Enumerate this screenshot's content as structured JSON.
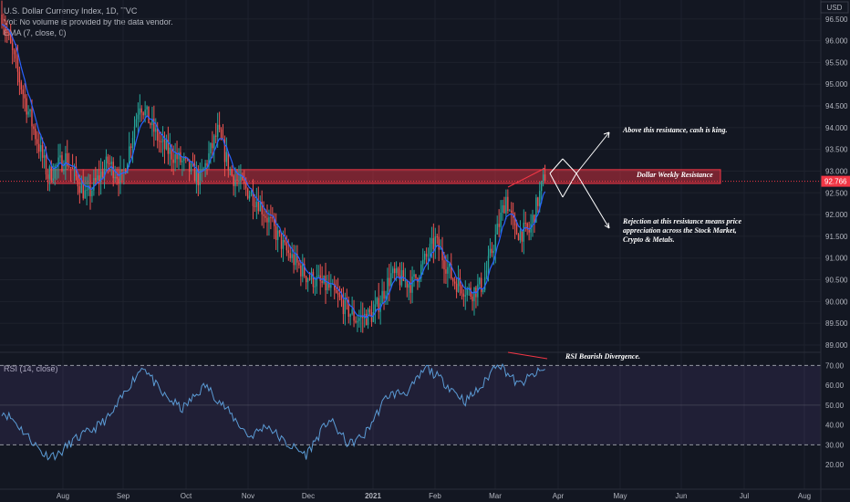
{
  "legend": {
    "title": "U.S. Dollar Currency Index, 1D, TVC",
    "volume_note": "Vol: No volume is provided by the data vendor.",
    "ema": "EMA (7, close, 0)",
    "rsi": "RSI (14, close)"
  },
  "currency_label": "USD",
  "price_tag": "92.766",
  "price_axis": [
    "96.500",
    "96.000",
    "95.500",
    "95.000",
    "94.500",
    "94.000",
    "93.500",
    "93.000",
    "92.500",
    "92.000",
    "91.500",
    "91.000",
    "90.500",
    "90.000",
    "89.500",
    "89.000"
  ],
  "rsi_axis": [
    "70.00",
    "60.00",
    "50.00",
    "40.00",
    "30.00",
    "20.00"
  ],
  "time_axis": [
    "Aug",
    "Sep",
    "Oct",
    "Nov",
    "Dec",
    "2021",
    "Feb",
    "Mar",
    "Apr",
    "May",
    "Jun",
    "Jul",
    "Aug"
  ],
  "annotations": {
    "resistance_label": "Dollar Weekly Resistance",
    "above_note": "Above this resistance, cash is king.",
    "rejection_note": [
      "Rejection at this resistance means price",
      "appreciation across the Stock Market,",
      "Crypto & Metals."
    ],
    "rsi_note": "RSI Bearish Divergence."
  },
  "colors": {
    "background": "#131722",
    "up": "#26a69a",
    "down": "#ef5350",
    "ema": "#2962ff",
    "rsi_line": "#5b9bd5",
    "rsi_band": "#7e57c2",
    "resistance": "#f23645"
  },
  "chart_data": {
    "type": "candlestick",
    "symbol": "U.S. Dollar Currency Index",
    "interval": "1D",
    "price_ylim": [
      89.0,
      96.6
    ],
    "rsi_ylim": [
      15,
      72
    ],
    "resistance_zone": [
      92.8,
      92.95
    ],
    "last_price": 92.766,
    "anchors": [
      [
        0,
        96.6
      ],
      [
        14,
        94.5
      ],
      [
        26,
        92.9
      ],
      [
        36,
        93.3
      ],
      [
        48,
        92.4
      ],
      [
        60,
        93.2
      ],
      [
        68,
        92.8
      ],
      [
        78,
        94.6
      ],
      [
        90,
        93.6
      ],
      [
        102,
        93.2
      ],
      [
        112,
        92.8
      ],
      [
        122,
        93.9
      ],
      [
        130,
        92.9
      ],
      [
        145,
        92.3
      ],
      [
        160,
        91.2
      ],
      [
        172,
        90.6
      ],
      [
        185,
        90.3
      ],
      [
        200,
        89.6
      ],
      [
        210,
        89.7
      ],
      [
        220,
        90.6
      ],
      [
        232,
        90.4
      ],
      [
        245,
        91.4
      ],
      [
        255,
        90.5
      ],
      [
        265,
        90.2
      ],
      [
        272,
        90.4
      ],
      [
        285,
        92.4
      ],
      [
        290,
        91.6
      ],
      [
        298,
        91.6
      ],
      [
        307,
        92.9
      ]
    ],
    "rsi_anchors": [
      [
        0,
        47
      ],
      [
        6,
        43
      ],
      [
        12,
        37
      ],
      [
        16,
        33
      ],
      [
        24,
        25
      ],
      [
        32,
        25
      ],
      [
        40,
        32
      ],
      [
        52,
        38
      ],
      [
        62,
        45
      ],
      [
        72,
        60
      ],
      [
        80,
        70
      ],
      [
        90,
        56
      ],
      [
        102,
        48
      ],
      [
        115,
        60
      ],
      [
        125,
        50
      ],
      [
        140,
        34
      ],
      [
        150,
        40
      ],
      [
        160,
        31
      ],
      [
        172,
        25
      ],
      [
        185,
        43
      ],
      [
        196,
        30
      ],
      [
        205,
        35
      ],
      [
        218,
        55
      ],
      [
        230,
        57
      ],
      [
        240,
        69
      ],
      [
        252,
        60
      ],
      [
        262,
        52
      ],
      [
        272,
        60
      ],
      [
        280,
        72
      ],
      [
        292,
        60
      ],
      [
        300,
        65
      ],
      [
        307,
        68
      ]
    ]
  }
}
